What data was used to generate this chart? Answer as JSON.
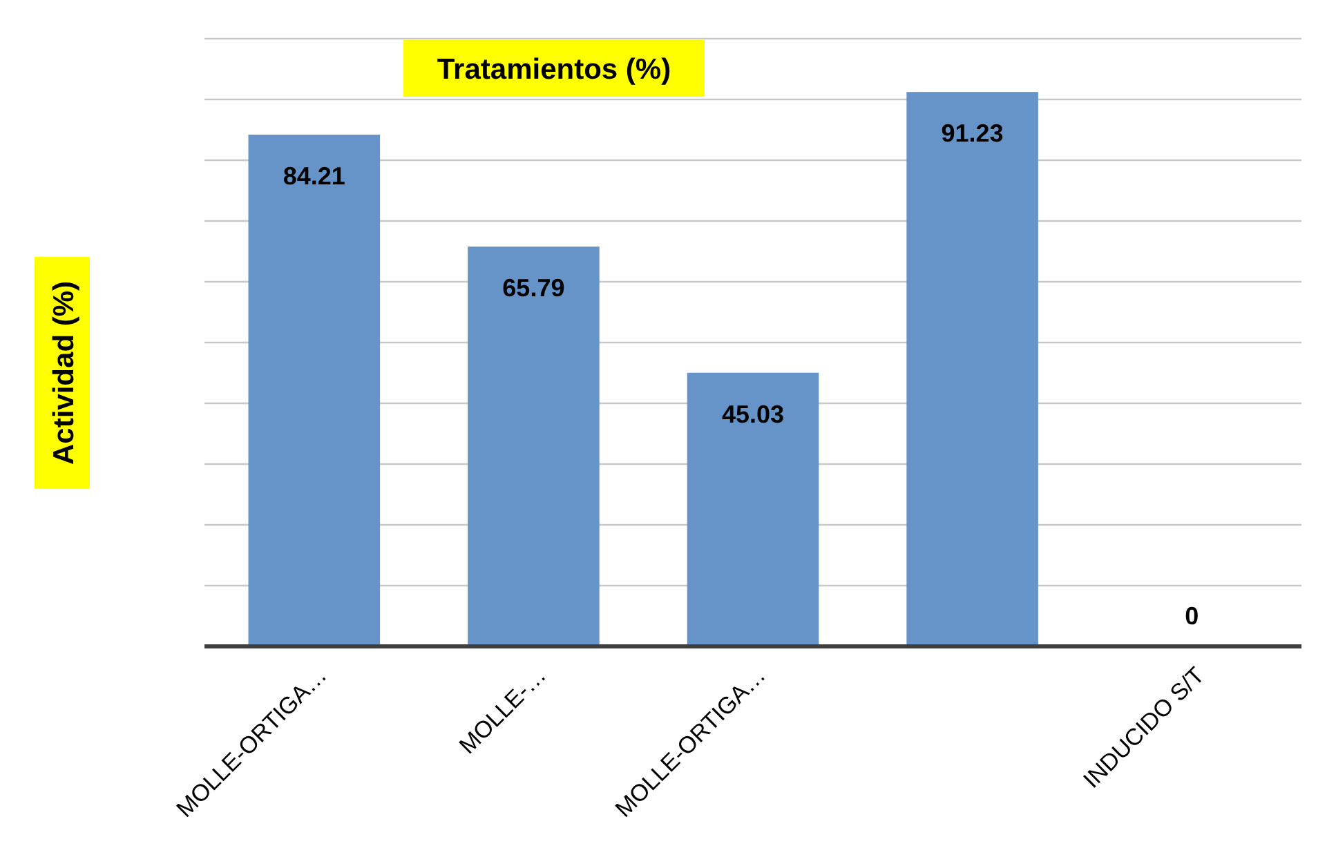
{
  "chart_data": {
    "type": "bar",
    "title": "Tratamientos (%)",
    "ylabel": "Actividad (%)",
    "categories": [
      "MOLLE-ORTIGA…",
      "MOLLE-…",
      "MOLLE-ORTIGA…",
      null,
      "INDUCIDO S/T"
    ],
    "values": [
      84.21,
      65.79,
      45.03,
      91.23,
      0
    ],
    "color": "#6794c8",
    "ylim": [
      0,
      100
    ],
    "yticks": [
      {
        "value": 0,
        "label": null
      },
      {
        "value": 10,
        "label": null
      },
      {
        "value": 20,
        "label": null
      },
      {
        "value": 30,
        "label": null
      },
      {
        "value": 40,
        "label": null
      },
      {
        "value": 50,
        "label": null
      },
      {
        "value": 60,
        "label": null
      },
      {
        "value": 70,
        "label": null
      },
      {
        "value": 80,
        "label": null
      },
      {
        "value": 90,
        "label": null
      },
      {
        "value": 100,
        "label": null
      }
    ],
    "grid": "y",
    "data_labels": true,
    "tick_labels": "x"
  }
}
